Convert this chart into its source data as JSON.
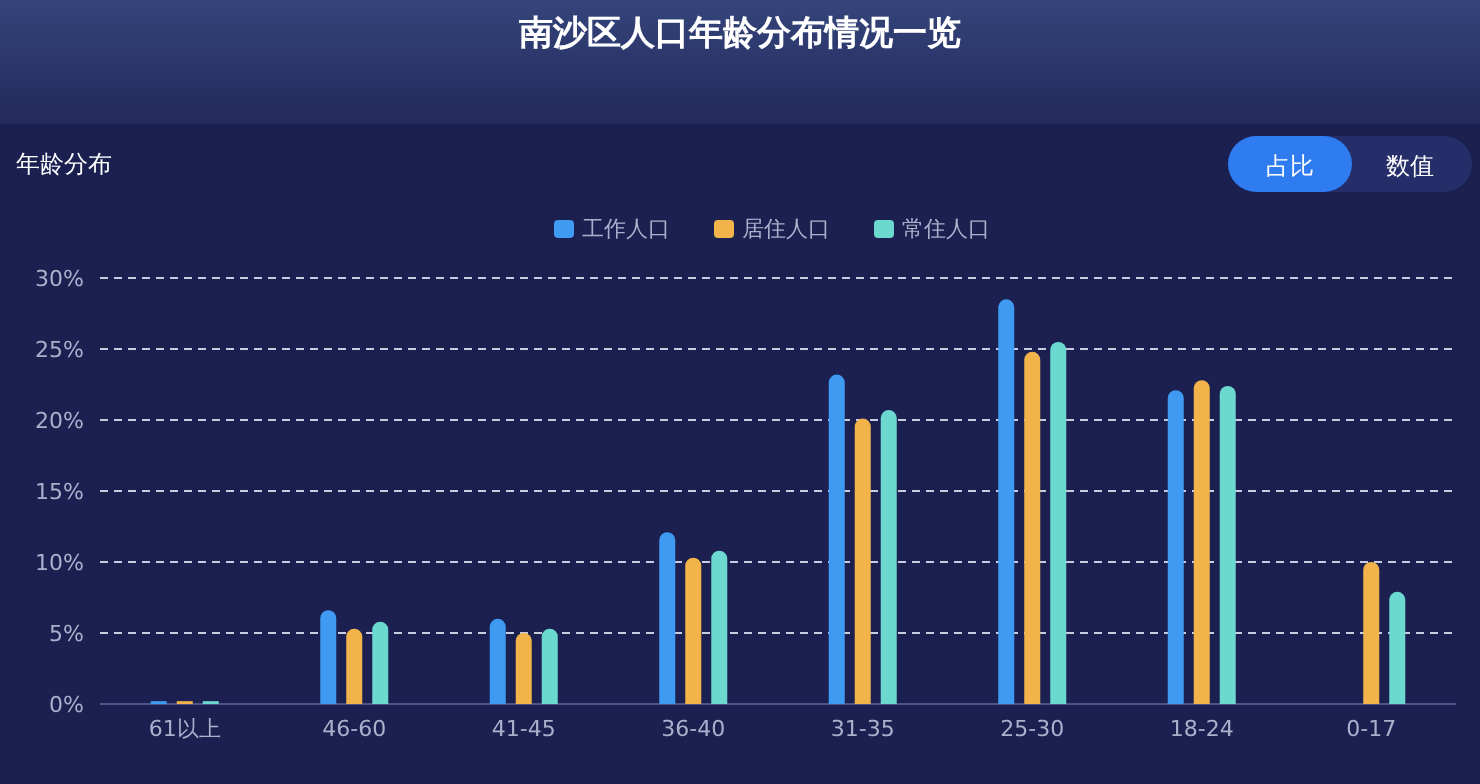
{
  "chart_data": {
    "type": "bar",
    "title": "南沙区人口年龄分布情况一览",
    "ylabel": "年龄分布",
    "annotations": [
      "占比",
      "数值"
    ],
    "categories": [
      "61以上",
      "46-60",
      "41-45",
      "36-40",
      "31-35",
      "25-30",
      "18-24",
      "0-17"
    ],
    "series": [
      {
        "name": "工作人口",
        "color": "#3f9af2",
        "values": [
          0.2,
          6.6,
          6.0,
          12.1,
          23.2,
          28.5,
          22.1,
          null
        ]
      },
      {
        "name": "居住人口",
        "color": "#f2b44a",
        "values": [
          0.2,
          5.3,
          5.0,
          10.3,
          20.1,
          24.8,
          22.8,
          10.0
        ]
      },
      {
        "name": "常住人口",
        "color": "#6bd9cf",
        "values": [
          0.2,
          5.8,
          5.3,
          10.8,
          20.7,
          25.5,
          22.4,
          7.9
        ]
      }
    ],
    "ylim": [
      0,
      30
    ],
    "yticks": [
      {
        "value": 0,
        "label": "0%"
      },
      {
        "value": 5,
        "label": "5%"
      },
      {
        "value": 10,
        "label": "10%"
      },
      {
        "value": 15,
        "label": "15%"
      },
      {
        "value": 20,
        "label": "20%"
      },
      {
        "value": 25,
        "label": "25%"
      },
      {
        "value": 30,
        "label": "30%"
      }
    ],
    "grid": "y",
    "legend": "top"
  }
}
